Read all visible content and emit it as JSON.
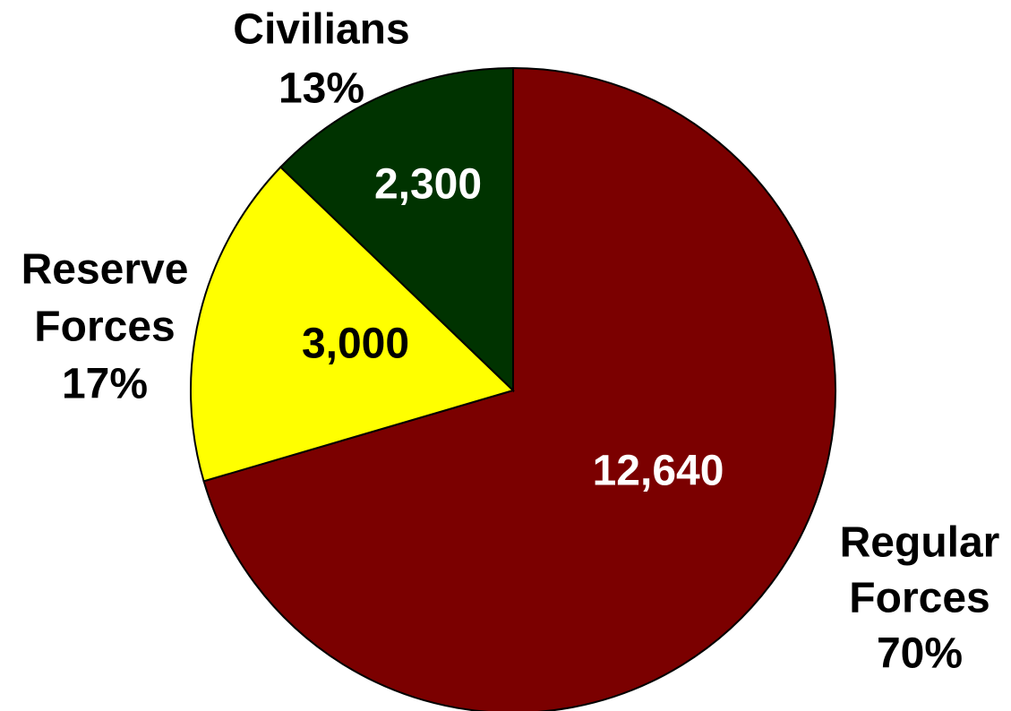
{
  "chart_data": {
    "type": "pie",
    "title": "",
    "start": "12 o'clock",
    "direction": "clockwise",
    "slices": [
      {
        "category_lines": [
          "Regular",
          "Forces"
        ],
        "percent_label": "70%",
        "value": 12640,
        "value_label": "12,640",
        "color": "#7B0000",
        "value_label_color": "#FFFFFF"
      },
      {
        "category_lines": [
          "Reserve",
          "Forces"
        ],
        "percent_label": "17%",
        "value": 3000,
        "value_label": "3,000",
        "color": "#FFFF00",
        "value_label_color": "#000000"
      },
      {
        "category_lines": [
          "Civilians"
        ],
        "percent_label": "13%",
        "value": 2300,
        "value_label": "2,300",
        "color": "#003300",
        "value_label_color": "#FFFFFF"
      }
    ]
  }
}
